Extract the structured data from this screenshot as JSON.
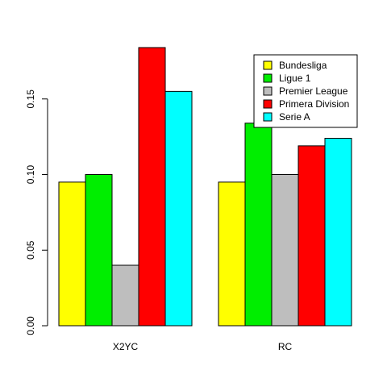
{
  "chart_data": {
    "type": "bar",
    "categories": [
      "X2YC",
      "RC"
    ],
    "series": [
      {
        "name": "Bundesliga",
        "color": "#ffff00",
        "values": [
          0.095,
          0.095
        ]
      },
      {
        "name": "Ligue 1",
        "color": "#00ee00",
        "values": [
          0.1,
          0.134
        ]
      },
      {
        "name": "Premier League",
        "color": "#bebebe",
        "values": [
          0.04,
          0.1
        ]
      },
      {
        "name": "Primera Division",
        "color": "#ff0000",
        "values": [
          0.184,
          0.119
        ]
      },
      {
        "name": "Serie A",
        "color": "#00ffff",
        "values": [
          0.155,
          0.124
        ]
      }
    ],
    "ylim": [
      0,
      0.184
    ],
    "yticks": [
      "0.00",
      "0.05",
      "0.10",
      "0.15"
    ],
    "legend_position": "top-right",
    "grid": false
  }
}
